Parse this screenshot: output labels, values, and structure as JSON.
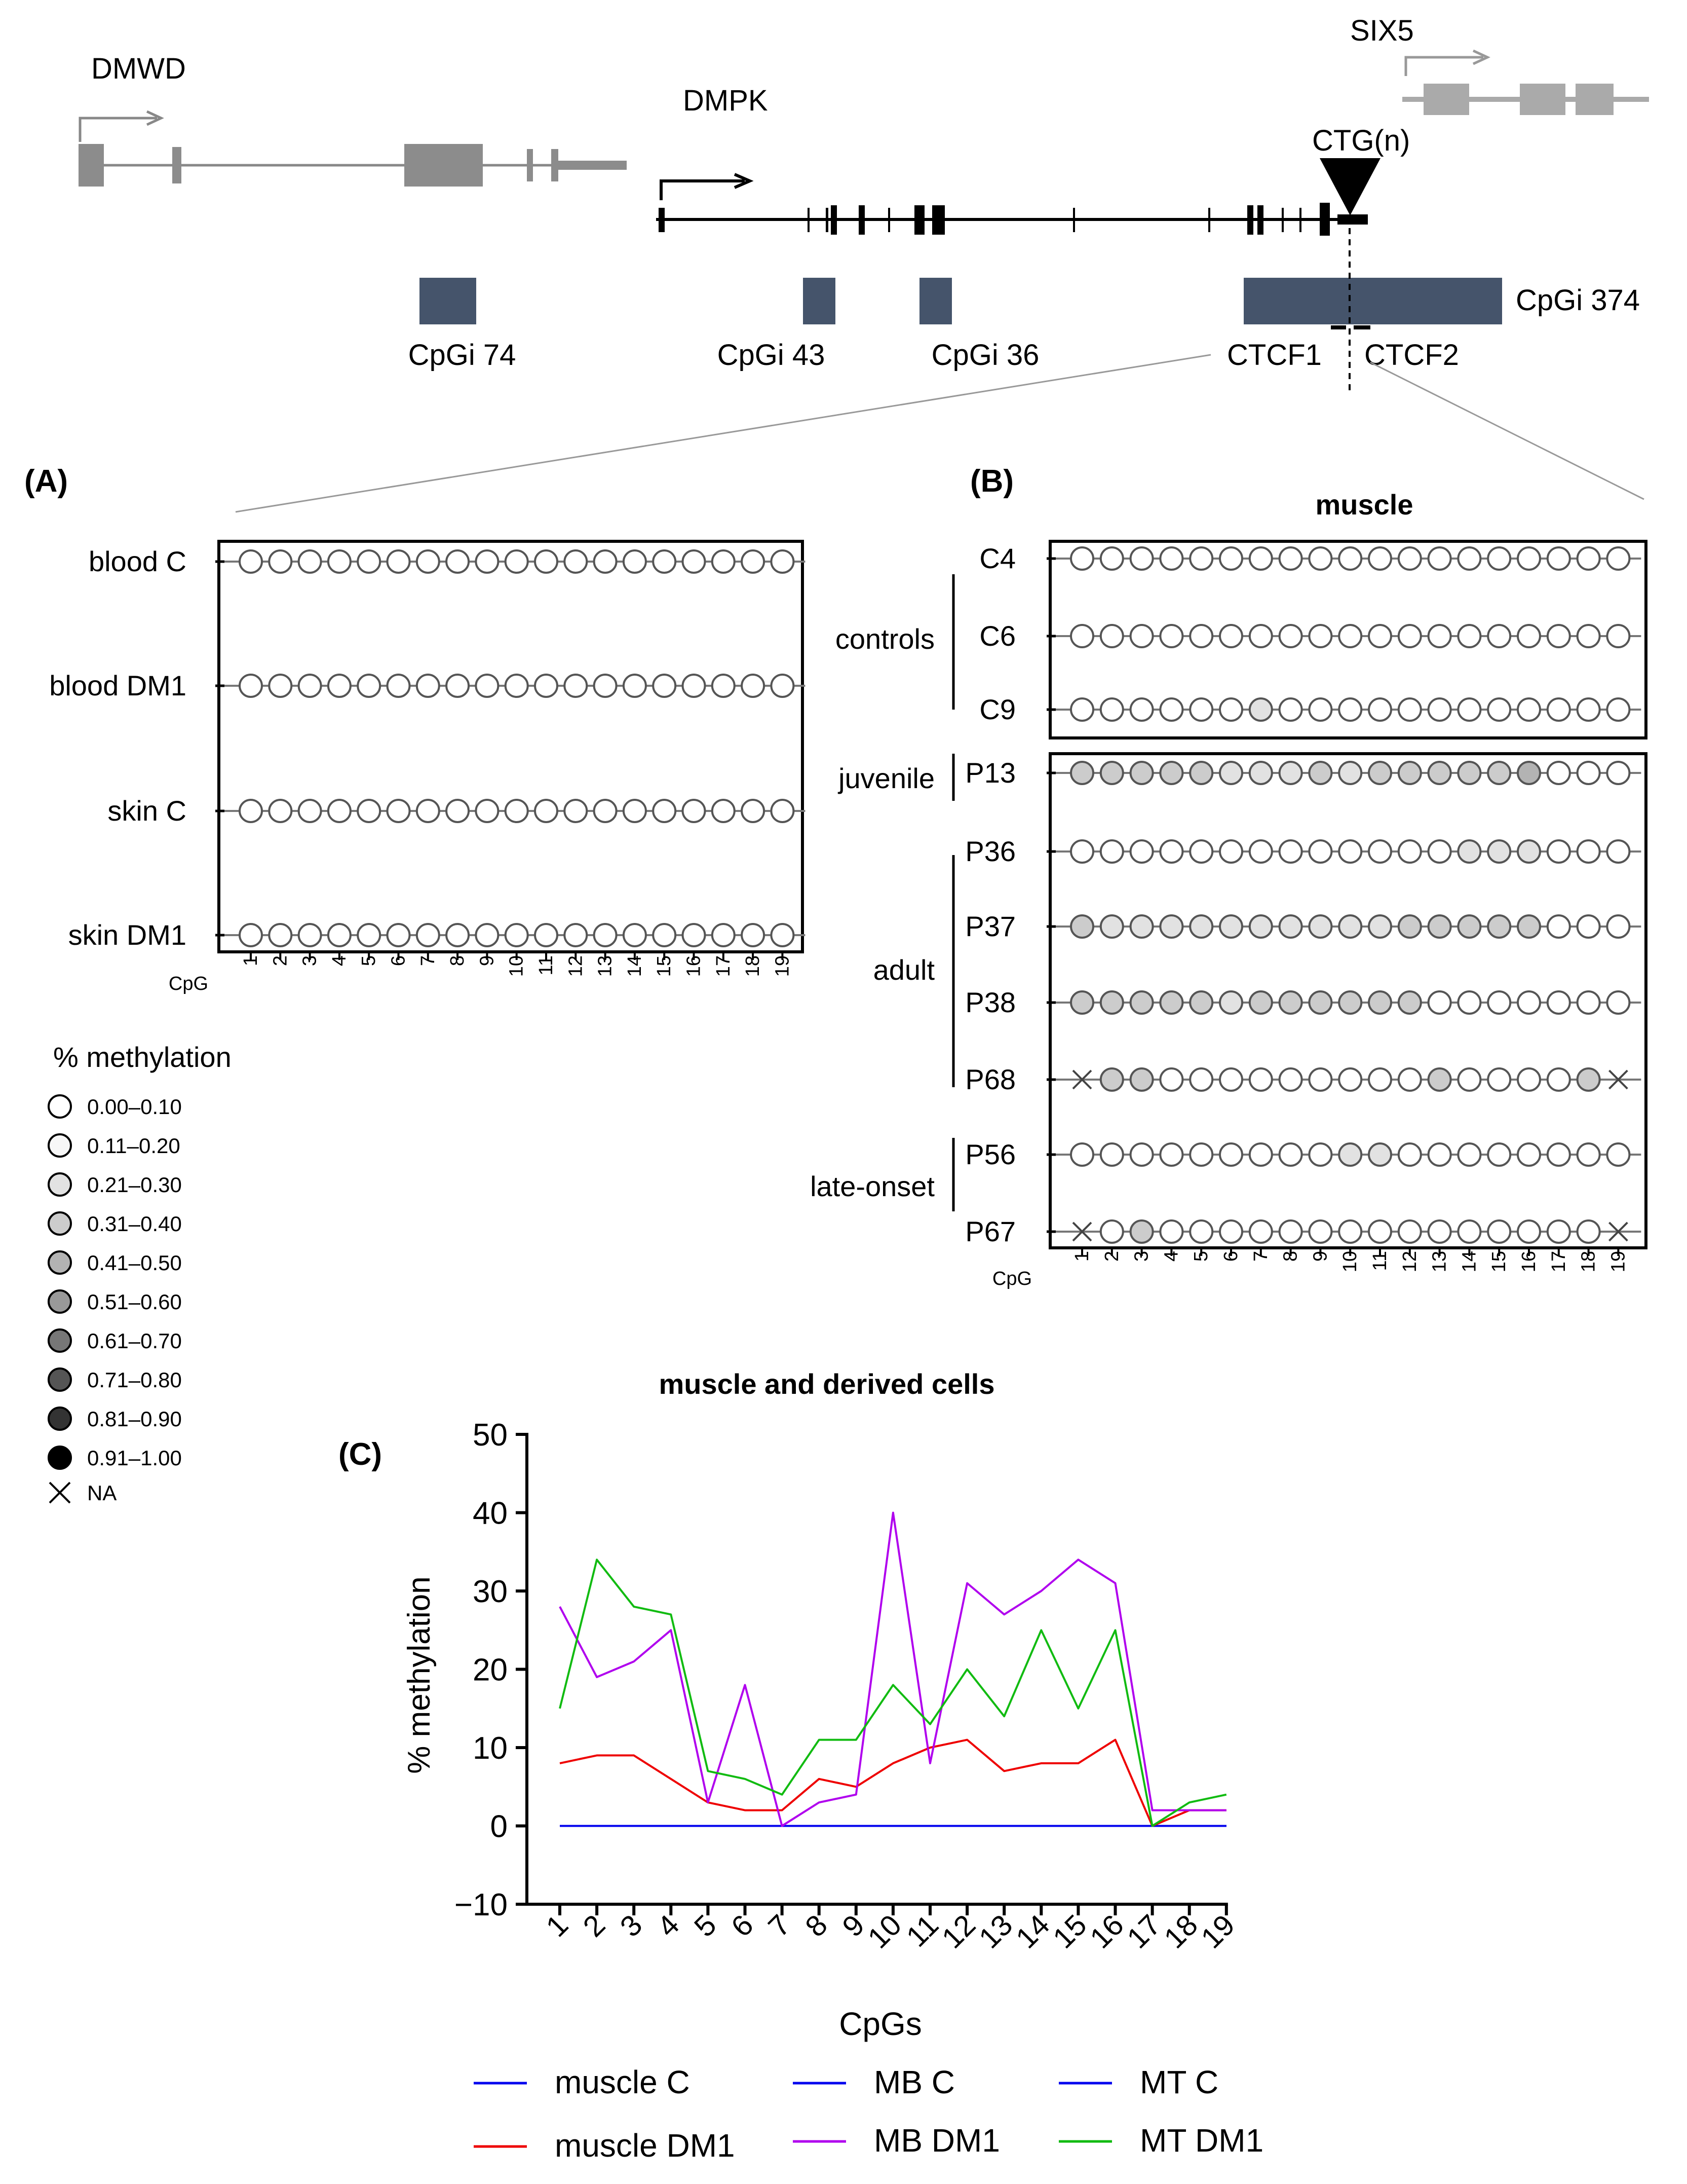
{
  "gene_map": {
    "genes": [
      "DMWD",
      "DMPK",
      "SIX5"
    ],
    "repeat_label": "CTG(n)",
    "islands": [
      "CpGi 74",
      "CpGi 43",
      "CpGi 36",
      "CpGi 374"
    ],
    "ctcf": [
      "CTCF1",
      "CTCF2"
    ]
  },
  "panel_a": {
    "label": "(A)",
    "rows": [
      "blood C",
      "blood DM1",
      "skin C",
      "skin DM1"
    ],
    "cpg_label": "CpG",
    "cpgs": [
      "1",
      "2",
      "3",
      "4",
      "5",
      "6",
      "7",
      "8",
      "9",
      "10",
      "11",
      "12",
      "13",
      "14",
      "15",
      "16",
      "17",
      "18",
      "19"
    ]
  },
  "panel_b": {
    "label": "(B)",
    "title": "muscle",
    "groups": [
      "controls",
      "juvenile",
      "adult",
      "late-onset"
    ],
    "rows": [
      "C4",
      "C6",
      "C9",
      "P13",
      "P36",
      "P37",
      "P38",
      "P68",
      "P56",
      "P67"
    ],
    "cpg_label": "CpG",
    "cpgs": [
      "1",
      "2",
      "3",
      "4",
      "5",
      "6",
      "7",
      "8",
      "9",
      "10",
      "11",
      "12",
      "13",
      "14",
      "15",
      "16",
      "17",
      "18",
      "19"
    ]
  },
  "legend": {
    "title": "% methylation",
    "bins": [
      "0.00–0.10",
      "0.11–0.20",
      "0.21–0.30",
      "0.31–0.40",
      "0.41–0.50",
      "0.51–0.60",
      "0.61–0.70",
      "0.71–0.80",
      "0.81–0.90",
      "0.91–1.00"
    ],
    "bin_colors": [
      "#ffffff",
      "#f7f7f7",
      "#e2e2e2",
      "#cccccc",
      "#b3b3b3",
      "#999999",
      "#777777",
      "#555555",
      "#333333",
      "#000000"
    ],
    "na_label": "NA"
  },
  "panel_c": {
    "label": "(C)"
  },
  "chart_data": [
    {
      "type": "heatmap",
      "name": "panel A",
      "rows": [
        "blood C",
        "blood DM1",
        "skin C",
        "skin DM1"
      ],
      "columns": [
        "1",
        "2",
        "3",
        "4",
        "5",
        "6",
        "7",
        "8",
        "9",
        "10",
        "11",
        "12",
        "13",
        "14",
        "15",
        "16",
        "17",
        "18",
        "19"
      ],
      "bins": [
        [
          0,
          0,
          0,
          0,
          0,
          0,
          0,
          0,
          0,
          0,
          0,
          0,
          0,
          0,
          0,
          0,
          0,
          0,
          0
        ],
        [
          0,
          0,
          0,
          0,
          0,
          0,
          0,
          0,
          0,
          0,
          0,
          0,
          0,
          0,
          0,
          0,
          0,
          0,
          0
        ],
        [
          0,
          0,
          0,
          0,
          0,
          0,
          0,
          0,
          0,
          0,
          0,
          0,
          0,
          0,
          0,
          0,
          0,
          0,
          0
        ],
        [
          0,
          0,
          0,
          0,
          0,
          0,
          0,
          0,
          0,
          0,
          0,
          0,
          0,
          0,
          0,
          0,
          0,
          0,
          0
        ]
      ]
    },
    {
      "type": "heatmap",
      "name": "panel B",
      "title": "muscle",
      "rows": [
        "C4",
        "C6",
        "C9",
        "P13",
        "P36",
        "P37",
        "P38",
        "P68",
        "P56",
        "P67"
      ],
      "columns": [
        "1",
        "2",
        "3",
        "4",
        "5",
        "6",
        "7",
        "8",
        "9",
        "10",
        "11",
        "12",
        "13",
        "14",
        "15",
        "16",
        "17",
        "18",
        "19"
      ],
      "bins": [
        [
          0,
          0,
          0,
          0,
          0,
          0,
          0,
          0,
          0,
          0,
          0,
          0,
          0,
          0,
          0,
          0,
          0,
          0,
          0
        ],
        [
          0,
          0,
          0,
          0,
          0,
          0,
          0,
          0,
          0,
          0,
          0,
          0,
          0,
          0,
          0,
          0,
          0,
          0,
          0
        ],
        [
          0,
          0,
          0,
          0,
          0,
          0,
          2,
          0,
          0,
          0,
          0,
          0,
          0,
          0,
          0,
          0,
          0,
          0,
          0
        ],
        [
          3,
          3,
          3,
          3,
          3,
          2,
          2,
          2,
          3,
          2,
          3,
          3,
          3,
          3,
          3,
          4,
          0,
          0,
          0
        ],
        [
          0,
          0,
          0,
          0,
          0,
          0,
          0,
          0,
          0,
          0,
          0,
          0,
          0,
          2,
          2,
          2,
          0,
          0,
          0
        ],
        [
          3,
          2,
          2,
          2,
          2,
          2,
          2,
          2,
          2,
          2,
          2,
          3,
          3,
          3,
          3,
          3,
          0,
          0,
          0
        ],
        [
          3,
          3,
          3,
          3,
          3,
          2,
          3,
          3,
          3,
          3,
          3,
          3,
          0,
          0,
          0,
          0,
          0,
          0,
          0
        ],
        [
          -1,
          3,
          3,
          0,
          0,
          0,
          0,
          0,
          0,
          0,
          0,
          0,
          3,
          0,
          0,
          0,
          0,
          3,
          -1
        ],
        [
          0,
          0,
          0,
          0,
          0,
          0,
          0,
          0,
          0,
          2,
          2,
          0,
          0,
          0,
          0,
          0,
          0,
          0,
          0
        ],
        [
          -1,
          0,
          3,
          0,
          0,
          0,
          0,
          0,
          0,
          0,
          0,
          0,
          0,
          0,
          0,
          0,
          0,
          0,
          -1
        ]
      ]
    },
    {
      "type": "line",
      "title": "muscle and derived cells",
      "xlabel": "CpGs",
      "ylabel": "% methylation",
      "x": [
        "1",
        "2",
        "3",
        "4",
        "5",
        "6",
        "7",
        "8",
        "9",
        "10",
        "11",
        "12",
        "13",
        "14",
        "15",
        "16",
        "17",
        "18",
        "19"
      ],
      "ylim": [
        -10,
        50
      ],
      "yticks": [
        "50",
        "40",
        "30",
        "20",
        "10",
        "0",
        "−10"
      ],
      "series": [
        {
          "name": "muscle C",
          "color": "#0000ee",
          "values": [
            0,
            0,
            0,
            0,
            0,
            0,
            0,
            0,
            0,
            0,
            0,
            0,
            0,
            0,
            0,
            0,
            0,
            0,
            0
          ]
        },
        {
          "name": "MB C",
          "color": "#0000ee",
          "values": [
            0,
            0,
            0,
            0,
            0,
            0,
            0,
            0,
            0,
            0,
            0,
            0,
            0,
            0,
            0,
            0,
            0,
            0,
            0
          ]
        },
        {
          "name": "MT C",
          "color": "#0000ee",
          "values": [
            0,
            0,
            0,
            0,
            0,
            0,
            0,
            0,
            0,
            0,
            0,
            0,
            0,
            0,
            0,
            0,
            0,
            0,
            0
          ]
        },
        {
          "name": "muscle DM1",
          "color": "#ee0000",
          "values": [
            8,
            9,
            9,
            6,
            3,
            2,
            2,
            6,
            5,
            8,
            10,
            11,
            7,
            8,
            8,
            11,
            0,
            2,
            2
          ]
        },
        {
          "name": "MB DM1",
          "color": "#b000ee",
          "values": [
            28,
            19,
            21,
            25,
            3,
            18,
            0,
            3,
            4,
            40,
            8,
            31,
            27,
            30,
            34,
            31,
            2,
            2,
            2
          ]
        },
        {
          "name": "MT DM1",
          "color": "#11bb11",
          "values": [
            15,
            34,
            28,
            27,
            7,
            6,
            4,
            11,
            11,
            18,
            13,
            20,
            14,
            25,
            15,
            25,
            0,
            3,
            4
          ]
        }
      ]
    }
  ]
}
